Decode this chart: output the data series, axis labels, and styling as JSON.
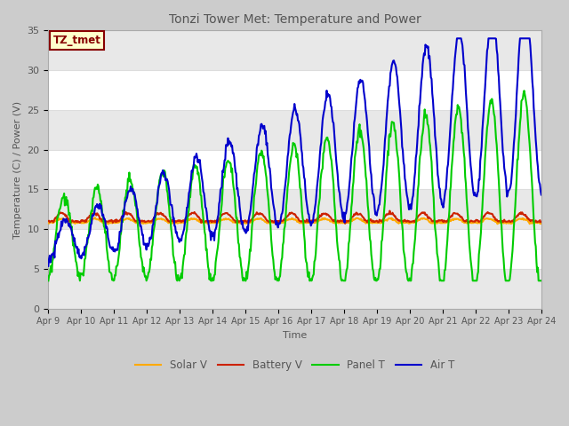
{
  "title": "Tonzi Tower Met: Temperature and Power",
  "xlabel": "Time",
  "ylabel": "Temperature (C) / Power (V)",
  "ylim": [
    0,
    35
  ],
  "y_ticks": [
    0,
    5,
    10,
    15,
    20,
    25,
    30,
    35
  ],
  "x_tick_labels": [
    "Apr 9",
    "Apr 10",
    "Apr 11",
    "Apr 12",
    "Apr 13",
    "Apr 14",
    "Apr 15",
    "Apr 16",
    "Apr 17",
    "Apr 18",
    "Apr 19",
    "Apr 20",
    "Apr 21",
    "Apr 22",
    "Apr 23",
    "Apr 24"
  ],
  "legend_labels": [
    "Panel T",
    "Battery V",
    "Air T",
    "Solar V"
  ],
  "legend_colors": [
    "#00cc00",
    "#cc2200",
    "#0000cc",
    "#ffaa00"
  ],
  "fig_bg_color": "#cccccc",
  "plot_bg_color": "#ffffff",
  "annotation_text": "TZ_tmet",
  "annotation_bg": "#ffffcc",
  "annotation_border": "#880000",
  "title_color": "#555555",
  "axis_color": "#555555",
  "grid_color": "#dddddd"
}
